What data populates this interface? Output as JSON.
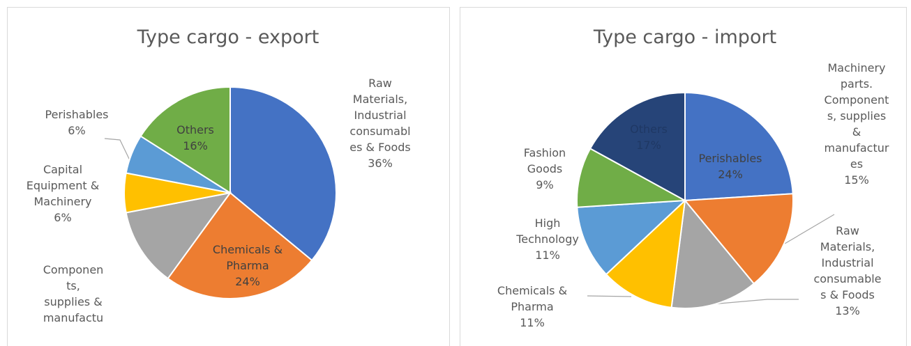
{
  "chart_data": [
    {
      "type": "pie",
      "title": "Type cargo - export",
      "categories": [
        "Raw Materials, Industrial consumables & Foods",
        "Chemicals & Pharma",
        "Components, supplies & manufactu",
        "Capital Equipment & Machinery",
        "Perishables",
        "Others"
      ],
      "values": [
        36,
        24,
        12,
        6,
        6,
        16
      ],
      "value_labels": [
        "36%",
        "24%",
        null,
        "6%",
        "6%",
        "16%"
      ],
      "colors": [
        "#4472c4",
        "#ed7d31",
        "#a5a5a5",
        "#ffc000",
        "#5b9bd5",
        "#70ad47"
      ]
    },
    {
      "type": "pie",
      "title": "Type cargo - import",
      "categories": [
        "Perishables",
        "Machinery parts. Components, supplies & manufactures",
        "Raw Materials, Industrial consumables & Foods",
        "Chemicals & Pharma",
        "High Technology",
        "Fashion Goods",
        "Others"
      ],
      "values": [
        24,
        15,
        13,
        11,
        11,
        9,
        17
      ],
      "value_labels": [
        "24%",
        "15%",
        "13%",
        "11%",
        "11%",
        "9%",
        "17%"
      ],
      "colors": [
        "#4472c4",
        "#ed7d31",
        "#a5a5a5",
        "#ffc000",
        "#5b9bd5",
        "#70ad47",
        "#264478"
      ]
    }
  ]
}
